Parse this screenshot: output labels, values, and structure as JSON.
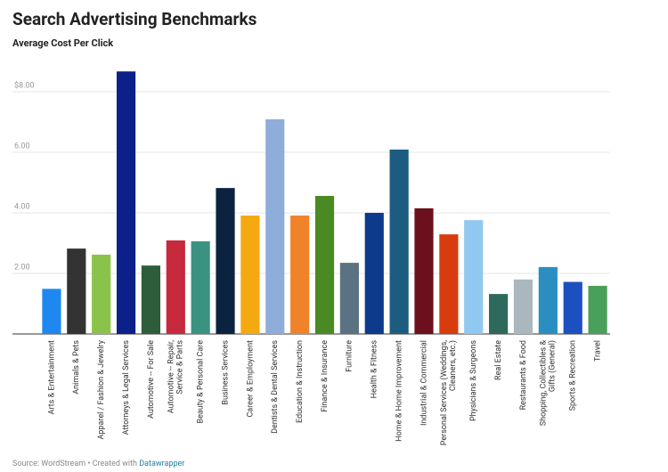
{
  "chart_data": {
    "type": "bar",
    "title": "Search Advertising Benchmarks",
    "subtitle": "Average Cost Per Click",
    "source": "Source: WordStream • Created with",
    "credit": "Datawrapper",
    "categories": [
      "Arts & Entertainment",
      "Animals & Pets",
      "Apparel / Fashion & Jewelry",
      "Attorneys & Legal Services",
      "Automotive -- For Sale",
      "Automotive -- Repair, Service & Parts",
      "Beauty & Personal Care",
      "Business Services",
      "Career & Employment",
      "Dentists & Dental Services",
      "Education & Instruction",
      "Finance & Insurance",
      "Furniture",
      "Health & Fitness",
      "Home & Home Improvement",
      "Industrial & Commercial",
      "Personal Services (Weddings, Cleaners, etc.)",
      "Physicians & Surgeons",
      "Real Estate",
      "Restaurants & Food",
      "Shopping, Collectibles & Gifts (General)",
      "Sports & Recreation",
      "Travel"
    ],
    "values": [
      1.49,
      2.82,
      2.62,
      8.67,
      2.26,
      3.09,
      3.06,
      4.82,
      3.91,
      7.09,
      3.91,
      4.56,
      2.35,
      4.0,
      6.09,
      4.15,
      3.29,
      3.76,
      1.32,
      1.8,
      2.21,
      1.72,
      1.59
    ],
    "colors": [
      "#1e88f0",
      "#333333",
      "#8bc34a",
      "#0b2189",
      "#2e5d3b",
      "#c62a3c",
      "#3a9380",
      "#0c2340",
      "#f5a910",
      "#8fadd9",
      "#f0832a",
      "#4a8a24",
      "#5b7282",
      "#0d3a8a",
      "#1c5c80",
      "#6d101e",
      "#d83c0e",
      "#90c8f0",
      "#2e6a5c",
      "#aab7bf",
      "#2a8fc0",
      "#1c4fc0",
      "#4aa05a"
    ],
    "ylim": [
      0,
      9
    ],
    "yticks": [
      {
        "value": 2,
        "label": "2.00"
      },
      {
        "value": 4,
        "label": "4.00"
      },
      {
        "value": 6,
        "label": "6.00"
      },
      {
        "value": 8,
        "label": "$8.00"
      }
    ],
    "grid": true
  }
}
